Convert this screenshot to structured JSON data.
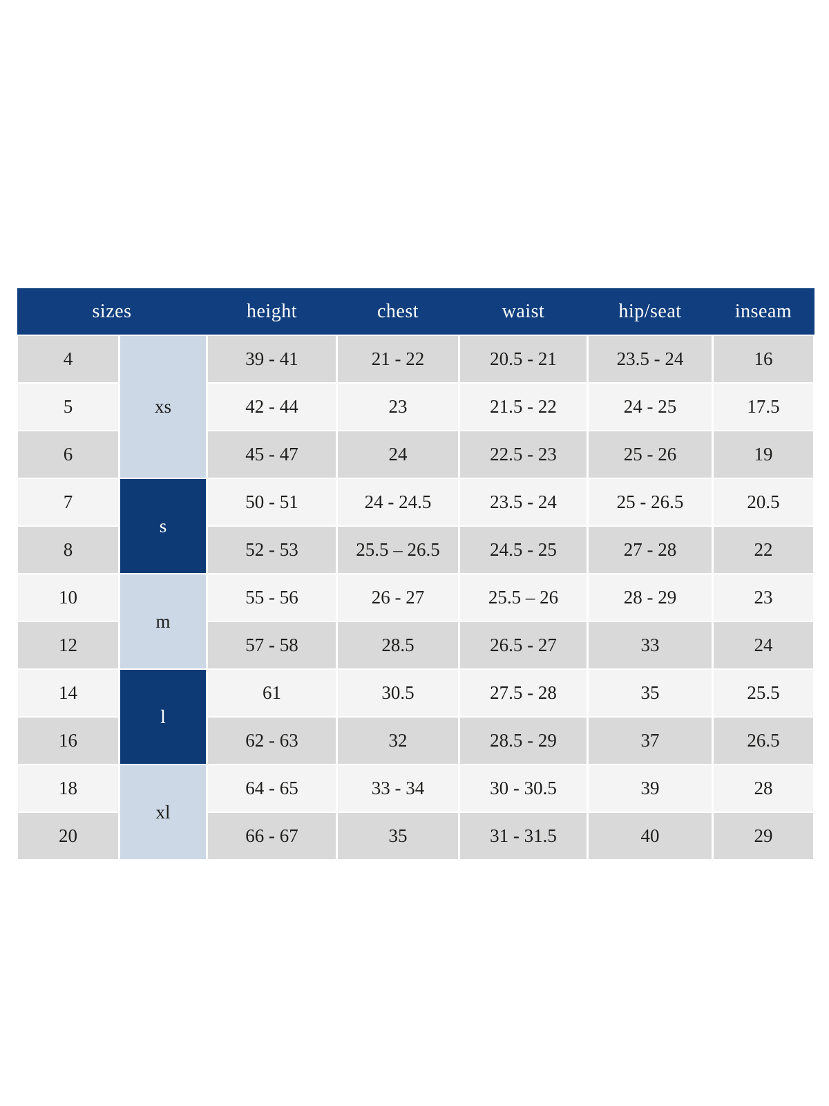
{
  "colors": {
    "header_bg": "#103e7e",
    "header_text": "#ffffff",
    "group_dark_bg": "#0d3a75",
    "group_dark_text": "#ffffff",
    "group_light_bg": "#ccd8e6",
    "row_gray": "#d9d9d9",
    "row_light": "#f4f4f4",
    "body_text": "#1d1d1b"
  },
  "size_chart": {
    "columns": [
      "sizes",
      "height",
      "chest",
      "waist",
      "hip/seat",
      "inseam"
    ],
    "groups": [
      {
        "label": "xs",
        "variant": "light",
        "span": 3
      },
      {
        "label": "s",
        "variant": "dark",
        "span": 2
      },
      {
        "label": "m",
        "variant": "light",
        "span": 2
      },
      {
        "label": "l",
        "variant": "dark",
        "span": 2
      },
      {
        "label": "xl",
        "variant": "light",
        "span": 2
      }
    ],
    "rows": [
      {
        "size": "4",
        "height": "39 - 41",
        "chest": "21 - 22",
        "waist": "20.5 - 21",
        "hip_seat": "23.5 - 24",
        "inseam": "16"
      },
      {
        "size": "5",
        "height": "42 - 44",
        "chest": "23",
        "waist": "21.5 - 22",
        "hip_seat": "24 - 25",
        "inseam": "17.5"
      },
      {
        "size": "6",
        "height": "45 - 47",
        "chest": "24",
        "waist": "22.5 - 23",
        "hip_seat": "25 - 26",
        "inseam": "19"
      },
      {
        "size": "7",
        "height": "50 - 51",
        "chest": "24 - 24.5",
        "waist": "23.5 - 24",
        "hip_seat": "25 - 26.5",
        "inseam": "20.5"
      },
      {
        "size": "8",
        "height": "52 - 53",
        "chest": "25.5 – 26.5",
        "waist": "24.5 - 25",
        "hip_seat": "27 - 28",
        "inseam": "22"
      },
      {
        "size": "10",
        "height": "55 - 56",
        "chest": "26 - 27",
        "waist": "25.5 – 26",
        "hip_seat": "28 - 29",
        "inseam": "23"
      },
      {
        "size": "12",
        "height": "57 - 58",
        "chest": "28.5",
        "waist": "26.5 - 27",
        "hip_seat": "33",
        "inseam": "24"
      },
      {
        "size": "14",
        "height": "61",
        "chest": "30.5",
        "waist": "27.5 - 28",
        "hip_seat": "35",
        "inseam": "25.5"
      },
      {
        "size": "16",
        "height": "62 - 63",
        "chest": "32",
        "waist": "28.5 - 29",
        "hip_seat": "37",
        "inseam": "26.5"
      },
      {
        "size": "18",
        "height": "64 - 65",
        "chest": "33 - 34",
        "waist": "30 - 30.5",
        "hip_seat": "39",
        "inseam": "28"
      },
      {
        "size": "20",
        "height": "66 - 67",
        "chest": "35",
        "waist": "31 - 31.5",
        "hip_seat": "40",
        "inseam": "29"
      }
    ]
  }
}
